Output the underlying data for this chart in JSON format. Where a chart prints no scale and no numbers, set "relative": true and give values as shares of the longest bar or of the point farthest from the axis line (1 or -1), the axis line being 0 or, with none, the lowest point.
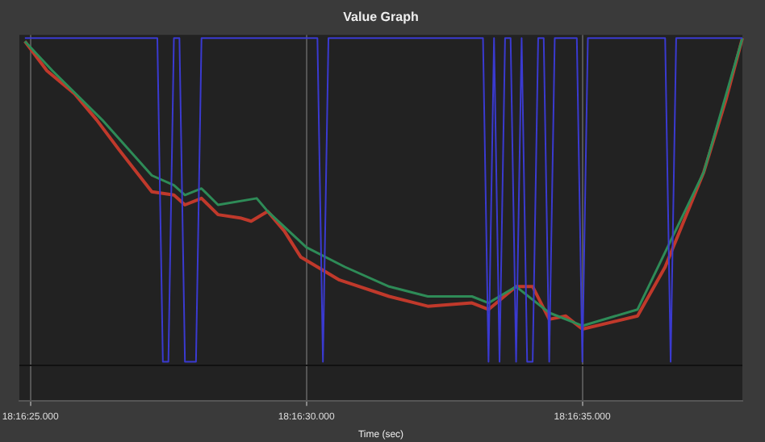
{
  "chart_data": {
    "type": "line",
    "title": "Value Graph",
    "xlabel": "Time (sec)",
    "relative": true,
    "categories": [
      null,
      null,
      "18:16:25.000",
      null,
      null,
      null,
      null,
      null,
      null,
      null,
      null,
      null,
      null,
      null,
      null,
      null,
      null,
      null,
      null,
      null,
      null,
      null,
      null,
      null,
      null,
      null,
      null,
      null,
      null,
      null,
      null,
      null,
      null,
      null,
      null,
      null,
      null,
      null,
      null,
      null,
      null,
      null,
      null,
      null,
      null,
      null,
      null,
      null,
      null,
      null,
      null,
      null,
      "18:16:30.000",
      null,
      null,
      null,
      null,
      null,
      null,
      null,
      null,
      null,
      null,
      null,
      null,
      null,
      null,
      null,
      null,
      null,
      null,
      null,
      null,
      null,
      null,
      null,
      null,
      null,
      null,
      null,
      null,
      null,
      null,
      null,
      null,
      null,
      null,
      null,
      null,
      null,
      null,
      null,
      null,
      null,
      null,
      null,
      null,
      null,
      null,
      null,
      null,
      null,
      "18:16:35.000",
      null,
      null,
      null,
      null,
      null,
      null,
      null,
      null,
      null,
      null,
      null,
      null,
      null,
      null,
      null,
      null,
      null,
      null,
      null,
      null,
      null,
      null,
      null,
      null,
      null,
      null,
      null,
      null,
      null
    ],
    "grid": "x",
    "marker": "none",
    "line_style": "solid",
    "series": [
      {
        "color": "#3a3ad0",
        "values": [
          null,
          1,
          null,
          null,
          null,
          null,
          null,
          null,
          null,
          null,
          null,
          null,
          null,
          null,
          null,
          null,
          null,
          null,
          null,
          null,
          null,
          null,
          null,
          null,
          null,
          1,
          0.01,
          0.01,
          1,
          1,
          0.01,
          0.01,
          0.01,
          1,
          null,
          null,
          null,
          null,
          null,
          null,
          null,
          null,
          null,
          null,
          null,
          null,
          null,
          null,
          null,
          null,
          null,
          null,
          null,
          null,
          1,
          0.01,
          1,
          null,
          null,
          null,
          null,
          null,
          null,
          null,
          null,
          null,
          null,
          null,
          null,
          null,
          null,
          null,
          null,
          null,
          null,
          null,
          null,
          null,
          null,
          null,
          null,
          null,
          null,
          null,
          1,
          0.01,
          1,
          0.01,
          1,
          1,
          0.01,
          1,
          0.01,
          0.01,
          1,
          1,
          0.01,
          1,
          null,
          null,
          null,
          1,
          0.01,
          1,
          null,
          null,
          null,
          null,
          null,
          null,
          null,
          null,
          null,
          null,
          null,
          null,
          null,
          1,
          0.01,
          1,
          null,
          null,
          null,
          null,
          null,
          null,
          null,
          null,
          null,
          null,
          null,
          1
        ]
      },
      {
        "color": "#2e8b57",
        "values": [
          null,
          0.99,
          null,
          null,
          null,
          null,
          0.9,
          null,
          null,
          null,
          null,
          null,
          null,
          null,
          null,
          0.75,
          null,
          null,
          null,
          null,
          null,
          null,
          null,
          null,
          0.58,
          null,
          null,
          null,
          0.55,
          null,
          0.52,
          null,
          null,
          0.54,
          null,
          null,
          0.49,
          null,
          null,
          null,
          null,
          null,
          null,
          0.51,
          null,
          0.47,
          null,
          null,
          null,
          null,
          null,
          null,
          0.36,
          null,
          null,
          null,
          null,
          null,
          null,
          0.3,
          null,
          null,
          null,
          null,
          null,
          null,
          null,
          0.24,
          null,
          null,
          null,
          null,
          null,
          null,
          0.21,
          null,
          null,
          null,
          null,
          null,
          null,
          null,
          0.21,
          null,
          null,
          0.19,
          null,
          null,
          null,
          null,
          0.24,
          null,
          null,
          null,
          null,
          null,
          0.16,
          null,
          null,
          null,
          null,
          null,
          0.12,
          null,
          null,
          null,
          null,
          null,
          null,
          null,
          null,
          null,
          0.17,
          null,
          null,
          null,
          null,
          null,
          null,
          null,
          null,
          null,
          null,
          null,
          0.59,
          null,
          null,
          null,
          null,
          null,
          null,
          1
        ]
      },
      {
        "color": "#c0392b",
        "values": [
          null,
          0.99,
          null,
          null,
          null,
          0.9,
          null,
          null,
          null,
          null,
          0.83,
          null,
          null,
          null,
          0.75,
          null,
          null,
          null,
          0.66,
          null,
          null,
          null,
          null,
          null,
          0.53,
          null,
          null,
          null,
          0.52,
          null,
          0.49,
          null,
          null,
          0.51,
          null,
          null,
          0.46,
          null,
          null,
          null,
          0.45,
          null,
          0.44,
          null,
          null,
          0.47,
          null,
          null,
          0.41,
          null,
          null,
          0.33,
          null,
          null,
          null,
          null,
          null,
          null,
          0.26,
          null,
          null,
          null,
          null,
          null,
          null,
          null,
          null,
          0.21,
          null,
          null,
          null,
          null,
          null,
          null,
          0.18,
          null,
          null,
          null,
          null,
          null,
          null,
          null,
          0.19,
          null,
          null,
          0.17,
          null,
          null,
          null,
          null,
          0.24,
          null,
          null,
          0.24,
          null,
          null,
          0.14,
          null,
          null,
          0.15,
          null,
          null,
          0.11,
          null,
          null,
          null,
          null,
          null,
          null,
          null,
          null,
          null,
          0.15,
          null,
          null,
          null,
          null,
          0.3,
          null,
          null,
          null,
          null,
          null,
          null,
          0.59,
          null,
          null,
          null,
          0.81,
          null,
          null,
          1
        ]
      }
    ]
  }
}
